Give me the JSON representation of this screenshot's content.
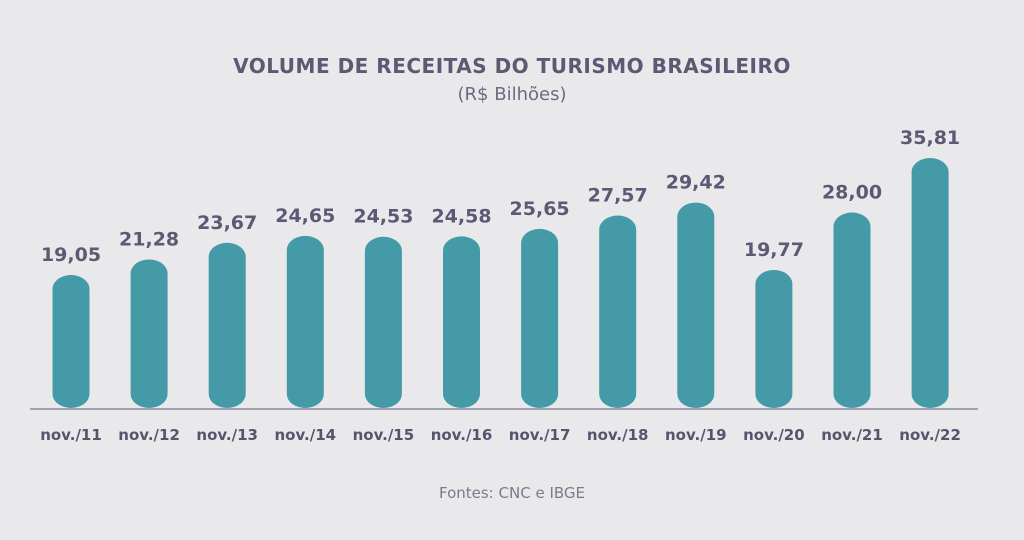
{
  "header": {
    "title": "VOLUME DE RECEITAS DO TURISMO BRASILEIRO",
    "subtitle": "(R$ Bilhões)"
  },
  "footer": {
    "source": "Fontes: CNC e IBGE"
  },
  "colors": {
    "bar": "#449aa6",
    "axis": "#8a8aa0",
    "background": "#e9e9ec"
  },
  "chart_data": {
    "type": "bar",
    "title": "VOLUME DE RECEITAS DO TURISMO BRASILEIRO",
    "subtitle": "(R$ Bilhões)",
    "categories": [
      "nov./11",
      "nov./12",
      "nov./13",
      "nov./14",
      "nov./15",
      "nov./16",
      "nov./17",
      "nov./18",
      "nov./19",
      "nov./20",
      "nov./21",
      "nov./22"
    ],
    "values": [
      19.05,
      21.28,
      23.67,
      24.65,
      24.53,
      24.58,
      25.65,
      27.57,
      29.42,
      19.77,
      28.0,
      35.81
    ],
    "value_labels": [
      "19,05",
      "21,28",
      "23,67",
      "24,65",
      "24,53",
      "24,58",
      "25,65",
      "27,57",
      "29,42",
      "19,77",
      "28,00",
      "35,81"
    ],
    "xlabel": "",
    "ylabel": "",
    "grid": false,
    "data_labels": "above bars"
  }
}
